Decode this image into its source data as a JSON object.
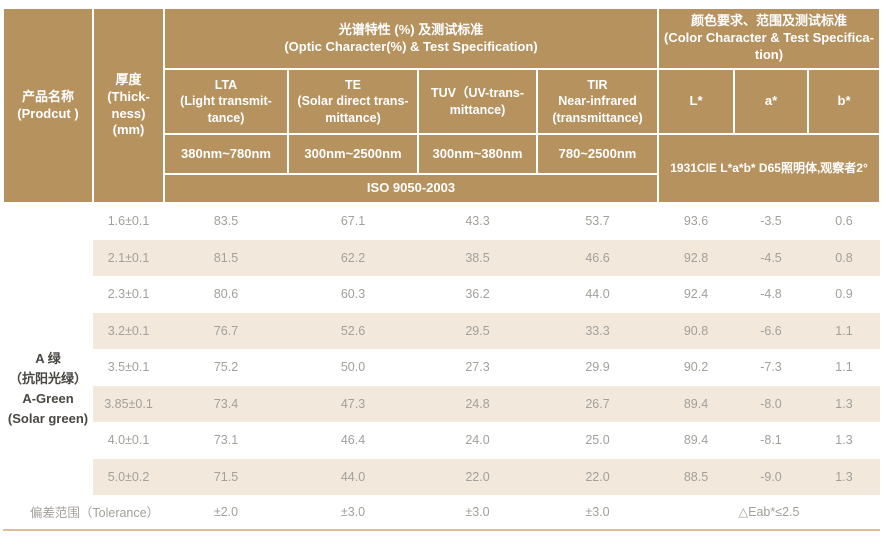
{
  "header": {
    "product_name": "产品名称\n(Prodcut )",
    "thickness": "厚度\n(Thick-\nness)\n(mm)",
    "optic_group": "光谱特性 (%) 及测试标准\n(Optic Character(%) & Test Specification)",
    "color_group": "颜色要求、范围及测试标准\n(Color Character & Test Specifica-\ntion)",
    "columns": [
      {
        "label": "LTA\n(Light transmit-\ntance)",
        "range": "380nm~780nm"
      },
      {
        "label": "TE\n(Solar direct trans-\nmittance)",
        "range": "300nm~2500nm"
      },
      {
        "label": "TUV（UV-trans-\nmittance)",
        "range": "300nm~380nm"
      },
      {
        "label": "TIR\nNear-infrared\n(transmittance)",
        "range": "780~2500nm"
      }
    ],
    "lab_columns": [
      "L*",
      "a*",
      "b*"
    ],
    "optic_standard": "ISO 9050-2003",
    "color_standard": "1931CIE L*a*b* D65照明体,观察者2°"
  },
  "product": {
    "name": "A 绿\n（抗阳光绿）\nA-Green\n(Solar green)"
  },
  "rows": [
    {
      "thickness": "1.6±0.1",
      "lta": "83.5",
      "te": "67.1",
      "tuv": "43.3",
      "tir": "53.7",
      "l": "93.6",
      "a": "-3.5",
      "b": "0.6"
    },
    {
      "thickness": "2.1±0.1",
      "lta": "81.5",
      "te": "62.2",
      "tuv": "38.5",
      "tir": "46.6",
      "l": "92.8",
      "a": "-4.5",
      "b": "0.8"
    },
    {
      "thickness": "2.3±0.1",
      "lta": "80.6",
      "te": "60.3",
      "tuv": "36.2",
      "tir": "44.0",
      "l": "92.4",
      "a": "-4.8",
      "b": "0.9"
    },
    {
      "thickness": "3.2±0.1",
      "lta": "76.7",
      "te": "52.6",
      "tuv": "29.5",
      "tir": "33.3",
      "l": "90.8",
      "a": "-6.6",
      "b": "1.1"
    },
    {
      "thickness": "3.5±0.1",
      "lta": "75.2",
      "te": "50.0",
      "tuv": "27.3",
      "tir": "29.9",
      "l": "90.2",
      "a": "-7.3",
      "b": "1.1"
    },
    {
      "thickness": "3.85±0.1",
      "lta": "73.4",
      "te": "47.3",
      "tuv": "24.8",
      "tir": "26.7",
      "l": "89.4",
      "a": "-8.0",
      "b": "1.3"
    },
    {
      "thickness": "4.0±0.1",
      "lta": "73.1",
      "te": "46.4",
      "tuv": "24.0",
      "tir": "25.0",
      "l": "89.4",
      "a": "-8.1",
      "b": "1.3"
    },
    {
      "thickness": "5.0±0.2",
      "lta": "71.5",
      "te": "44.0",
      "tuv": "22.0",
      "tir": "22.0",
      "l": "88.5",
      "a": "-9.0",
      "b": "1.3"
    }
  ],
  "tolerance": {
    "label": "偏差范围（Tolerance）",
    "lta": "±2.0",
    "te": "±3.0",
    "tuv": "±3.0",
    "tir": "±3.0",
    "eab": "△Eab*≤2.5"
  },
  "colors": {
    "header_bg": "#b6925f",
    "stripe_bg": "#f2e9dc",
    "data_text": "#a3a09a",
    "product_text": "#4a4742",
    "bottom_line": "#dcbf93"
  }
}
